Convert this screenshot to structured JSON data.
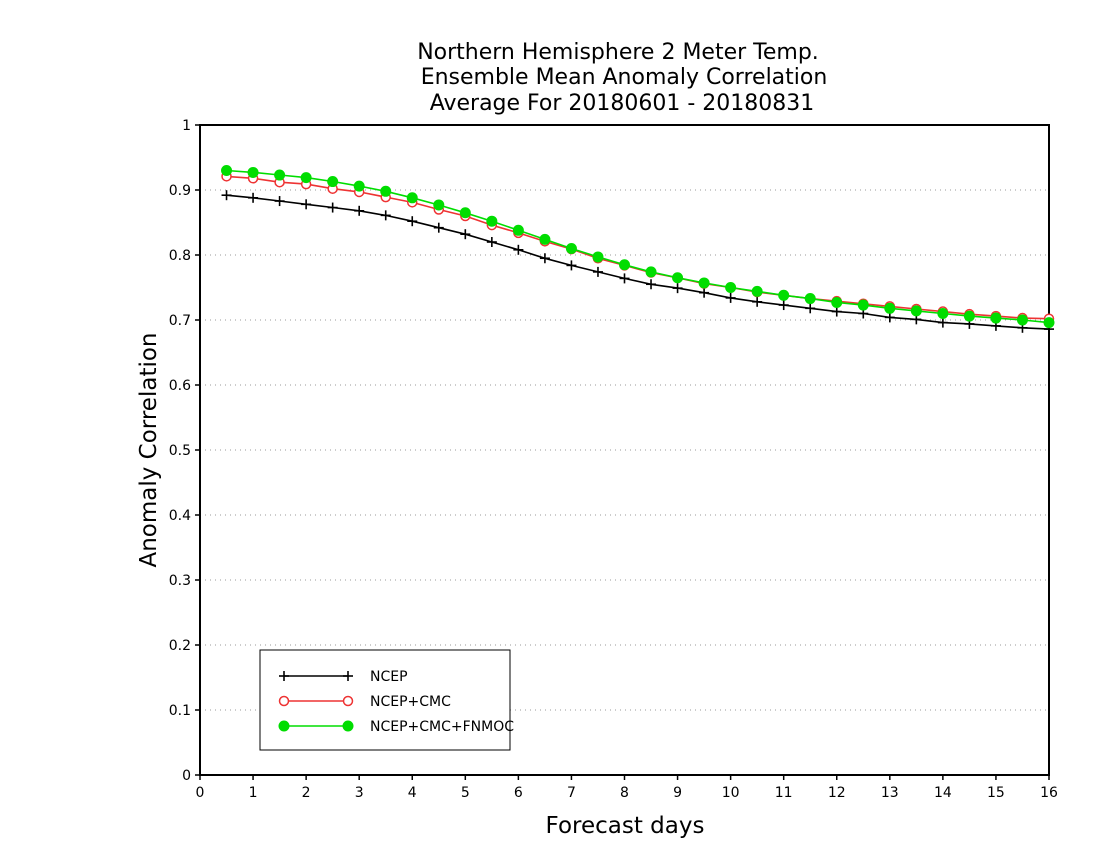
{
  "chart_data": {
    "type": "line",
    "title": [
      "Northern Hemisphere 2 Meter Temp.",
      "Ensemble Mean Anomaly Correlation",
      "Average For 20180601 - 20180831"
    ],
    "xlabel": "Forecast days",
    "ylabel": "Anomaly Correlation",
    "xlim": [
      0,
      16
    ],
    "ylim": [
      0,
      1
    ],
    "xticks": [
      0,
      1,
      2,
      3,
      4,
      5,
      6,
      7,
      8,
      9,
      10,
      11,
      12,
      13,
      14,
      15,
      16
    ],
    "yticks": [
      0,
      0.1,
      0.2,
      0.3,
      0.4,
      0.5,
      0.6,
      0.7,
      0.8,
      0.9,
      1
    ],
    "ytick_labels": [
      "0",
      "0.1",
      "0.2",
      "0.3",
      "0.4",
      "0.5",
      "0.6",
      "0.7",
      "0.8",
      "0.9",
      "1"
    ],
    "grid": true,
    "legend_position": "bottom-left",
    "x": [
      0.5,
      1,
      1.5,
      2,
      2.5,
      3,
      3.5,
      4,
      4.5,
      5,
      5.5,
      6,
      6.5,
      7,
      7.5,
      8,
      8.5,
      9,
      9.5,
      10,
      10.5,
      11,
      11.5,
      12,
      12.5,
      13,
      13.5,
      14,
      14.5,
      15,
      15.5,
      16
    ],
    "series": [
      {
        "name": "NCEP",
        "color": "#000000",
        "marker": "plus",
        "values": [
          0.892,
          0.888,
          0.883,
          0.878,
          0.873,
          0.868,
          0.861,
          0.852,
          0.842,
          0.832,
          0.82,
          0.808,
          0.795,
          0.784,
          0.774,
          0.764,
          0.755,
          0.749,
          0.742,
          0.734,
          0.728,
          0.723,
          0.718,
          0.713,
          0.71,
          0.704,
          0.701,
          0.696,
          0.694,
          0.691,
          0.688,
          0.686
        ]
      },
      {
        "name": "NCEP+CMC",
        "color": "#ee3333",
        "marker": "circle-open",
        "values": [
          0.921,
          0.918,
          0.912,
          0.909,
          0.902,
          0.897,
          0.889,
          0.881,
          0.87,
          0.86,
          0.846,
          0.834,
          0.821,
          0.809,
          0.795,
          0.784,
          0.773,
          0.765,
          0.756,
          0.75,
          0.743,
          0.738,
          0.733,
          0.729,
          0.725,
          0.721,
          0.717,
          0.713,
          0.709,
          0.706,
          0.703,
          0.702
        ]
      },
      {
        "name": "NCEP+CMC+FNMOC",
        "color": "#00dd00",
        "marker": "circle-filled",
        "values": [
          0.93,
          0.927,
          0.923,
          0.919,
          0.913,
          0.906,
          0.898,
          0.888,
          0.877,
          0.865,
          0.852,
          0.838,
          0.824,
          0.81,
          0.797,
          0.785,
          0.774,
          0.765,
          0.757,
          0.75,
          0.744,
          0.738,
          0.733,
          0.727,
          0.723,
          0.718,
          0.714,
          0.71,
          0.706,
          0.703,
          0.7,
          0.696
        ]
      }
    ]
  }
}
